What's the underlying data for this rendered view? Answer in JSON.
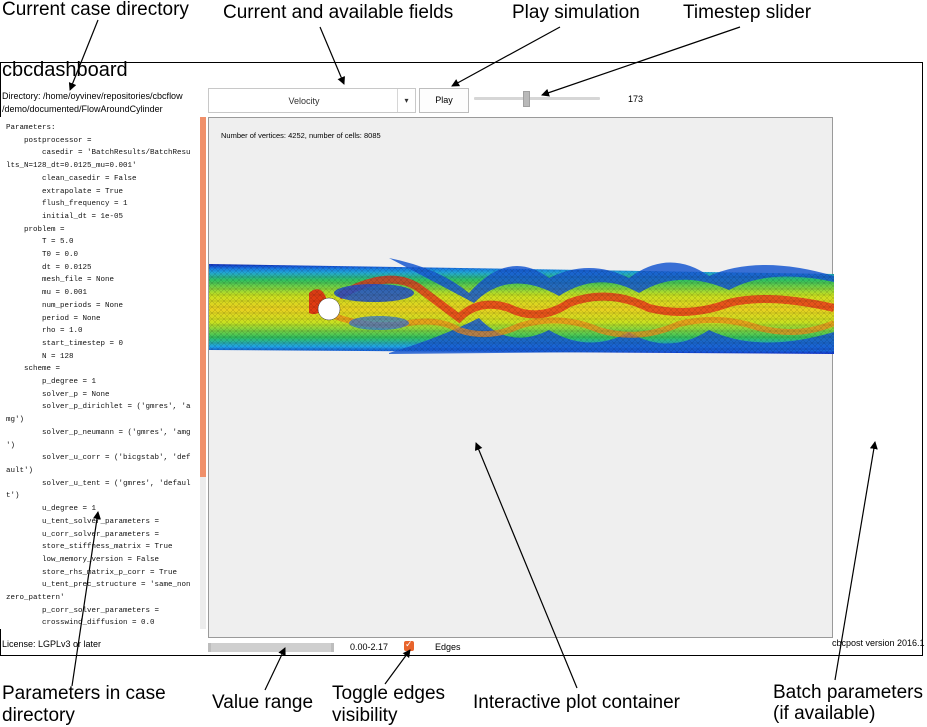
{
  "annotations": {
    "case_dir": "Current case directory",
    "fields": "Current and available fields",
    "play": "Play simulation",
    "timestep": "Timestep slider",
    "params_1": "Parameters in case",
    "params_2": "directory",
    "value_range": "Value range",
    "toggle_1": "Toggle edges",
    "toggle_2": "visibility",
    "plot": "Interactive plot container",
    "batch_1": "Batch parameters",
    "batch_2": "(if available)"
  },
  "app": {
    "title": "cbcdashboard",
    "directory_line1": "Directory: /home/oyvinev/repositories/cbcflow",
    "directory_line2": "/demo/documented/FlowAroundCylinder"
  },
  "toolbar": {
    "field_value": "Velocity",
    "dropdown_glyph": "▾",
    "play_label": "Play",
    "timestep_value": "173",
    "timestep_fraction": 0.41
  },
  "parameters": {
    "text": "Parameters:\n    postprocessor =\n        casedir = 'BatchResults/BatchResu\nlts_N=128_dt=0.0125_mu=0.001'\n        clean_casedir = False\n        extrapolate = True\n        flush_frequency = 1\n        initial_dt = 1e-05\n    problem =\n        T = 5.0\n        T0 = 0.0\n        dt = 0.0125\n        mesh_file = None\n        mu = 0.001\n        num_periods = None\n        period = None\n        rho = 1.0\n        start_timestep = 0\n        N = 128\n    scheme =\n        p_degree = 1\n        solver_p = None\n        solver_p_dirichlet = ('gmres', 'a\nmg')\n        solver_p_neumann = ('gmres', 'amg\n')\n        solver_u_corr = ('bicgstab', 'def\nault')\n        solver_u_tent = ('gmres', 'defaul\nt')\n        u_degree = 1\n        u_tent_solver_parameters =\n        u_corr_solver_parameters =\n        store_stiffness_matrix = True\n        low_memory_version = False\n        store_rhs_matrix_p_corr = True\n        u_tent_prec_structure = 'same_non\nzero_pattern'\n        p_corr_solver_parameters =\n        crosswind_diffusion = 0.0"
  },
  "plot": {
    "info": "Number of vertices: 4252, number of cells: 8085"
  },
  "footer": {
    "license": "License: LGPLv3 or later",
    "version": "cbcpost version 2016.1",
    "range": "0.00-2.17",
    "edges_label": "Edges",
    "edges_checked": true
  },
  "colors": {
    "accent": "#e8642c",
    "scroll_thumb": "#f0906a",
    "plot_bg": "#efefef"
  }
}
